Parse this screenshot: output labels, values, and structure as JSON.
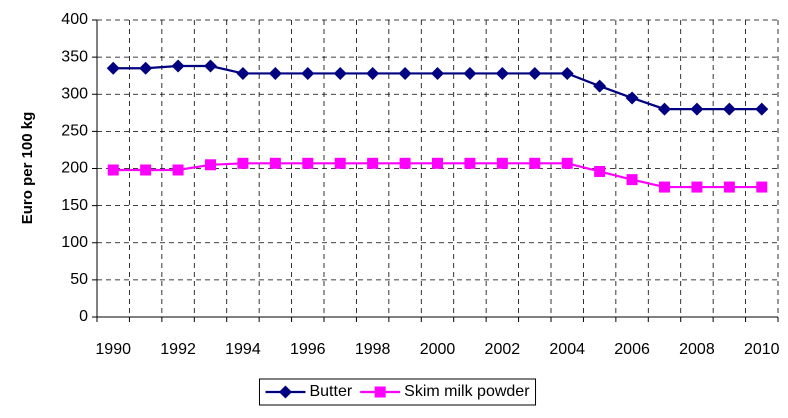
{
  "chart_data": {
    "type": "line",
    "y_label": "Euro per 100 kg",
    "categories": [
      "1990",
      null,
      "1992",
      null,
      "1994",
      null,
      "1996",
      null,
      "1998",
      null,
      "2000",
      null,
      "2002",
      null,
      "2004",
      null,
      "2006",
      null,
      "2008",
      null,
      "2010"
    ],
    "series": [
      {
        "name": "Butter",
        "color": "#000080",
        "marker": "diamond",
        "values": [
          335,
          335,
          338,
          338,
          328,
          328,
          328,
          328,
          328,
          328,
          328,
          328,
          328,
          328,
          328,
          311,
          295,
          280,
          280,
          280,
          280
        ]
      },
      {
        "name": "Skim milk powder",
        "color": "#ff00ff",
        "marker": "square",
        "values": [
          198,
          198,
          198,
          205,
          207,
          207,
          207,
          207,
          207,
          207,
          207,
          207,
          207,
          207,
          207,
          196,
          185,
          175,
          175,
          175,
          175
        ]
      }
    ],
    "ylim": [
      0,
      400
    ],
    "yticks": [
      0,
      50,
      100,
      150,
      200,
      250,
      300,
      350,
      400
    ],
    "grid": true,
    "legend": "bottom"
  }
}
